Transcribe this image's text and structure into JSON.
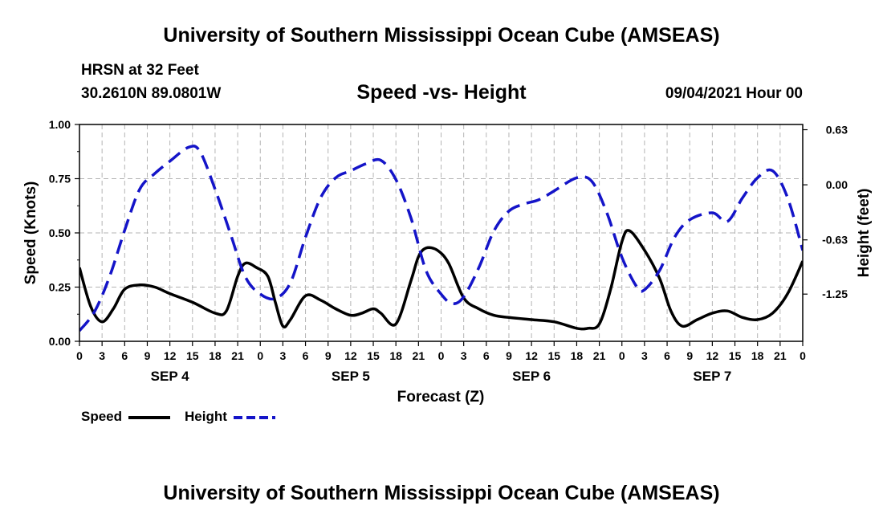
{
  "header": {
    "title": "University of Southern Mississippi Ocean Cube (AMSEAS)",
    "station": "HRSN at 32 Feet",
    "coords": "30.2610N  89.0801W",
    "chart_title": "Speed -vs- Height",
    "datetime": "09/04/2021 Hour 00"
  },
  "footer": {
    "title": "University of Southern Mississippi Ocean Cube (AMSEAS)"
  },
  "colors": {
    "speed": "#000000",
    "height": "#1414c8",
    "grid": "#b4b4b4"
  },
  "chart_data": {
    "type": "line",
    "title": "Speed -vs- Height",
    "xlabel": "Forecast (Z)",
    "ylabel": "Speed (Knots)",
    "y2label": "Height (feet)",
    "xlim": [
      0,
      96
    ],
    "x_ticks": [
      0,
      3,
      6,
      9,
      12,
      15,
      18,
      21,
      24,
      27,
      30,
      33,
      36,
      39,
      42,
      45,
      48,
      51,
      54,
      57,
      60,
      63,
      66,
      69,
      72,
      75,
      78,
      81,
      84,
      87,
      90,
      93,
      96
    ],
    "x_tick_labels": [
      "0",
      "3",
      "6",
      "9",
      "12",
      "15",
      "18",
      "21",
      "0",
      "3",
      "6",
      "9",
      "12",
      "15",
      "18",
      "21",
      "0",
      "3",
      "6",
      "9",
      "12",
      "15",
      "18",
      "21",
      "0",
      "3",
      "6",
      "9",
      "12",
      "15",
      "18",
      "21",
      "0"
    ],
    "day_labels": [
      {
        "x": 12,
        "label": "SEP 4"
      },
      {
        "x": 36,
        "label": "SEP 5"
      },
      {
        "x": 60,
        "label": "SEP 6"
      },
      {
        "x": 84,
        "label": "SEP 7"
      }
    ],
    "ylim": [
      0,
      1.0
    ],
    "y_ticks": [
      0,
      0.25,
      0.5,
      0.75,
      1.0
    ],
    "y_tick_labels": [
      "0.00",
      "0.25",
      "0.50",
      "0.75",
      "1.00"
    ],
    "y2lim": [
      -1.79,
      0.69
    ],
    "y2_ticks": [
      0.63,
      0.0,
      -0.63,
      -1.25
    ],
    "y2_tick_labels": [
      "0.63",
      "0.00",
      "-0.63",
      "-1.25"
    ],
    "grid": true,
    "legend": [
      "Speed",
      "Height"
    ],
    "series": [
      {
        "name": "Speed",
        "axis": "left",
        "style": "solid",
        "x": [
          0,
          1.5,
          3,
          4.5,
          6,
          8,
          10,
          12,
          15,
          18,
          19.5,
          21,
          22,
          23.5,
          25,
          26,
          27,
          28,
          30,
          32,
          34,
          36,
          37.5,
          39,
          40,
          42,
          44,
          45,
          46,
          47.5,
          49,
          51,
          53,
          55,
          57,
          60,
          63,
          66,
          67.5,
          69,
          70.5,
          72,
          73,
          75,
          77,
          78.5,
          80,
          82,
          84,
          86,
          88,
          90,
          92,
          94,
          96
        ],
        "y": [
          0.34,
          0.16,
          0.09,
          0.15,
          0.24,
          0.26,
          0.25,
          0.22,
          0.18,
          0.13,
          0.14,
          0.3,
          0.36,
          0.34,
          0.3,
          0.18,
          0.07,
          0.1,
          0.21,
          0.19,
          0.15,
          0.12,
          0.13,
          0.15,
          0.13,
          0.08,
          0.28,
          0.39,
          0.43,
          0.42,
          0.36,
          0.2,
          0.15,
          0.12,
          0.11,
          0.1,
          0.09,
          0.06,
          0.06,
          0.08,
          0.24,
          0.46,
          0.51,
          0.42,
          0.29,
          0.14,
          0.07,
          0.1,
          0.13,
          0.14,
          0.11,
          0.1,
          0.13,
          0.22,
          0.37
        ]
      },
      {
        "name": "Height",
        "axis": "right",
        "style": "dashed",
        "x": [
          0,
          2,
          4,
          6,
          8,
          10,
          12,
          14.5,
          16,
          18,
          20,
          22,
          24,
          26,
          28,
          30,
          32,
          34,
          36,
          38,
          40,
          42,
          44,
          46,
          48,
          49.5,
          51,
          53,
          55,
          57,
          59,
          61,
          63,
          66,
          68,
          70,
          72,
          74,
          75,
          77,
          79,
          81,
          84,
          86,
          88,
          90,
          92,
          94,
          96
        ],
        "y": [
          -1.67,
          -1.45,
          -1.05,
          -0.52,
          -0.05,
          0.13,
          0.27,
          0.43,
          0.38,
          -0.05,
          -0.55,
          -1.05,
          -1.25,
          -1.3,
          -1.12,
          -0.6,
          -0.15,
          0.08,
          0.16,
          0.24,
          0.28,
          0.06,
          -0.38,
          -0.98,
          -1.25,
          -1.36,
          -1.28,
          -0.95,
          -0.53,
          -0.3,
          -0.22,
          -0.17,
          -0.07,
          0.08,
          0.04,
          -0.32,
          -0.83,
          -1.17,
          -1.2,
          -0.98,
          -0.6,
          -0.4,
          -0.32,
          -0.42,
          -0.15,
          0.08,
          0.16,
          -0.15,
          -0.75
        ]
      }
    ]
  }
}
